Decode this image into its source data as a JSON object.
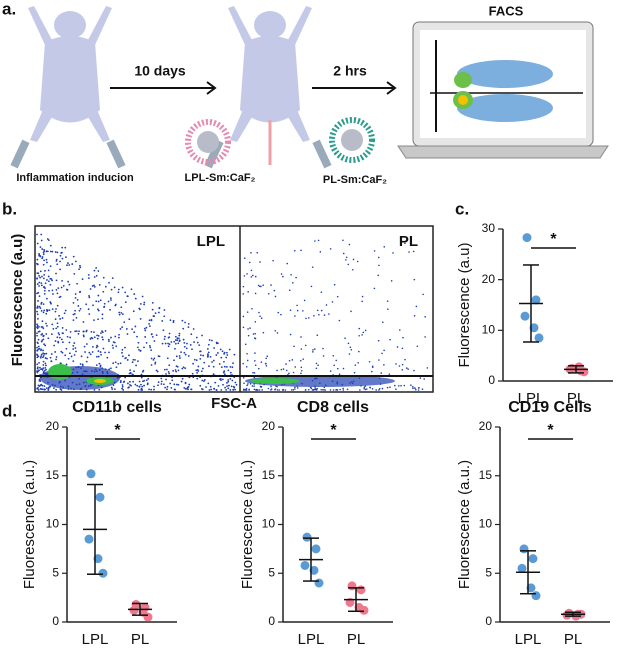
{
  "schematic": {
    "step1": "10 days",
    "step2": "2 hrs",
    "facs": "FACS",
    "mouse1": "Inflammation inducion",
    "probe1": "LPL-Sm:CaF₂",
    "probe2": "PL-Sm:CaF₂"
  },
  "panel_labels": [
    "a.",
    "b.",
    "c.",
    "d."
  ],
  "flow": {
    "ylabel": "Fluorescence (a.u)",
    "xlabel": "FSC-A",
    "left": "LPL",
    "right": "PL"
  },
  "chart_data": [
    {
      "type": "dot_plot",
      "ylabel": "Fluorescence (a.u)",
      "significance": "*",
      "categories": [
        "LPL",
        "PL"
      ],
      "ylim": [
        0,
        30
      ],
      "yticks": [
        0,
        10,
        20,
        30
      ],
      "groups": [
        {
          "color": "#5b9bd5",
          "values": [
            28.3,
            16,
            12.8,
            10.5,
            8.5
          ],
          "mean": 15.3,
          "sd": 7.6
        },
        {
          "color": "#f0788c",
          "values": [
            2.5,
            2.0,
            2.3,
            2.8,
            1.8
          ],
          "mean": 2.3,
          "sd": 0.7
        }
      ]
    },
    {
      "type": "dot_plot",
      "title": "CD11b cells",
      "ylabel": "Fluorescence (a.u.)",
      "significance": "*",
      "categories": [
        "LPL",
        "PL"
      ],
      "ylim": [
        0,
        20
      ],
      "yticks": [
        0,
        5,
        10,
        15,
        20
      ],
      "groups": [
        {
          "color": "#5b9bd5",
          "values": [
            15.2,
            12.8,
            8.5,
            6.5,
            5.0
          ],
          "mean": 9.5,
          "sd": 4.6
        },
        {
          "color": "#f0788c",
          "values": [
            1.8,
            1.5,
            1.2,
            1.0,
            0.5
          ],
          "mean": 1.3,
          "sd": 0.6
        }
      ]
    },
    {
      "type": "dot_plot",
      "title": "CD8 cells",
      "ylabel": "Fluorescence (a.u.)",
      "significance": "*",
      "categories": [
        "LPL",
        "PL"
      ],
      "ylim": [
        0,
        20
      ],
      "yticks": [
        0,
        5,
        10,
        15,
        20
      ],
      "groups": [
        {
          "color": "#5b9bd5",
          "values": [
            8.7,
            7.5,
            5.8,
            5.3,
            4.0
          ],
          "mean": 6.4,
          "sd": 2.2
        },
        {
          "color": "#f0788c",
          "values": [
            3.7,
            3.3,
            2.0,
            1.5,
            1.2
          ],
          "mean": 2.3,
          "sd": 1.2
        }
      ]
    },
    {
      "type": "dot_plot",
      "title": "CD19 Cells",
      "ylabel": "Fluorescence (a.u.)",
      "significance": "*",
      "categories": [
        "LPL",
        "PL"
      ],
      "ylim": [
        0,
        20
      ],
      "yticks": [
        0,
        5,
        10,
        15,
        20
      ],
      "groups": [
        {
          "color": "#5b9bd5",
          "values": [
            7.5,
            6.5,
            5.5,
            3.5,
            2.7
          ],
          "mean": 5.1,
          "sd": 2.2
        },
        {
          "color": "#f0788c",
          "values": [
            0.9,
            0.8,
            0.7,
            0.6,
            0.8
          ],
          "mean": 0.8,
          "sd": 0.2
        }
      ]
    }
  ]
}
